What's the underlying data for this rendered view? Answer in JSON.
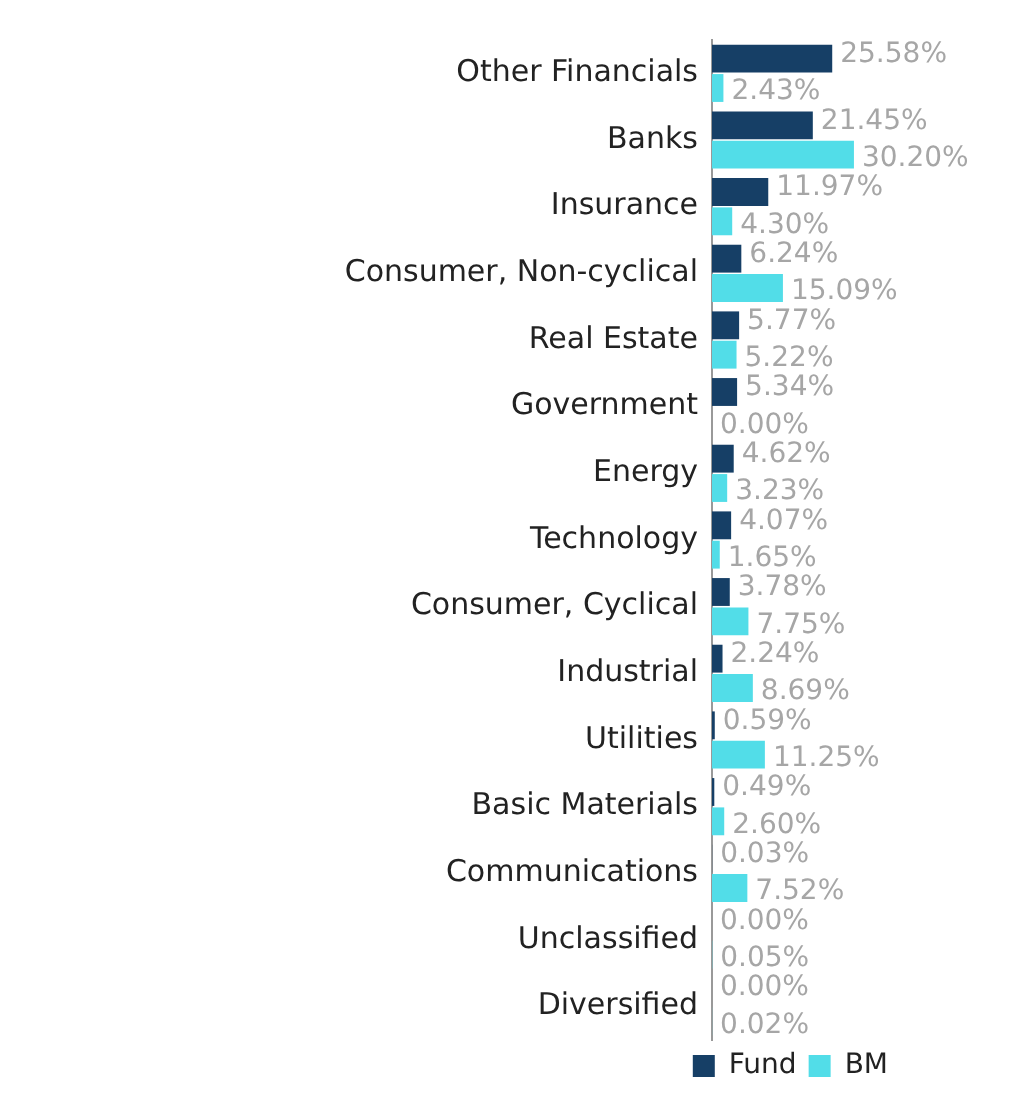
{
  "chart_data": {
    "type": "bar",
    "orientation": "horizontal",
    "categories": [
      "Other Financials",
      "Banks",
      "Insurance",
      "Consumer, Non-cyclical",
      "Real Estate",
      "Government",
      "Energy",
      "Technology",
      "Consumer, Cyclical",
      "Industrial",
      "Utilities",
      "Basic Materials",
      "Communications",
      "Unclassified",
      "Diversified"
    ],
    "series": [
      {
        "name": "Fund",
        "color": "#163f66",
        "values": [
          25.58,
          21.45,
          11.97,
          6.24,
          5.77,
          5.34,
          4.62,
          4.07,
          3.78,
          2.24,
          0.59,
          0.49,
          0.03,
          0.0,
          0.0
        ],
        "value_labels": [
          "25.58%",
          "21.45%",
          "11.97%",
          "6.24%",
          "5.77%",
          "5.34%",
          "4.62%",
          "4.07%",
          "3.78%",
          "2.24%",
          "0.59%",
          "0.49%",
          "0.03%",
          "0.00%",
          "0.00%"
        ]
      },
      {
        "name": "BM",
        "color": "#52dde8",
        "values": [
          2.43,
          30.2,
          4.3,
          15.09,
          5.22,
          0.0,
          3.23,
          1.65,
          7.75,
          8.69,
          11.25,
          2.6,
          7.52,
          0.05,
          0.02
        ],
        "value_labels": [
          "2.43%",
          "30.20%",
          "4.30%",
          "15.09%",
          "5.22%",
          "0.00%",
          "3.23%",
          "1.65%",
          "7.75%",
          "8.69%",
          "11.25%",
          "2.60%",
          "7.52%",
          "0.05%",
          "0.02%"
        ]
      }
    ],
    "tick_labels": "y",
    "grid": false,
    "legend": "bottom right"
  }
}
